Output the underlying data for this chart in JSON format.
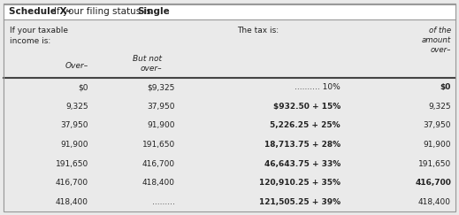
{
  "title_bold_part": "Schedule X–",
  "title_normal_part": "If your filing status is ",
  "title_bold2_part": "Single",
  "bg_color": "#eaeaea",
  "title_bg": "#ffffff",
  "border_color": "#999999",
  "divider_color": "#444444",
  "text_color": "#222222",
  "rows": [
    [
      "$0",
      "$9,325",
      ".......... 10%",
      "$0"
    ],
    [
      "9,325",
      "37,950",
      "$932.50 + 15%",
      "9,325"
    ],
    [
      "37,950",
      "91,900",
      "5,226.25 + 25%",
      "37,950"
    ],
    [
      "91,900",
      "191,650",
      "18,713.75 + 28%",
      "91,900"
    ],
    [
      "191,650",
      "416,700",
      "46,643.75 + 33%",
      "191,650"
    ],
    [
      "416,700",
      "418,400",
      "120,910.25 + 35%",
      "416,700"
    ],
    [
      "418,400",
      ".........",
      "121,505.25 + 39%",
      "418,400"
    ]
  ],
  "col1_bold": [
    false,
    false,
    false,
    false,
    false,
    false,
    false
  ],
  "col3_bold": [
    false,
    true,
    true,
    true,
    true,
    true,
    true
  ],
  "col4_bold": [
    true,
    false,
    false,
    false,
    false,
    true,
    false
  ],
  "figsize": [
    5.19,
    2.43
  ],
  "dpi": 100
}
